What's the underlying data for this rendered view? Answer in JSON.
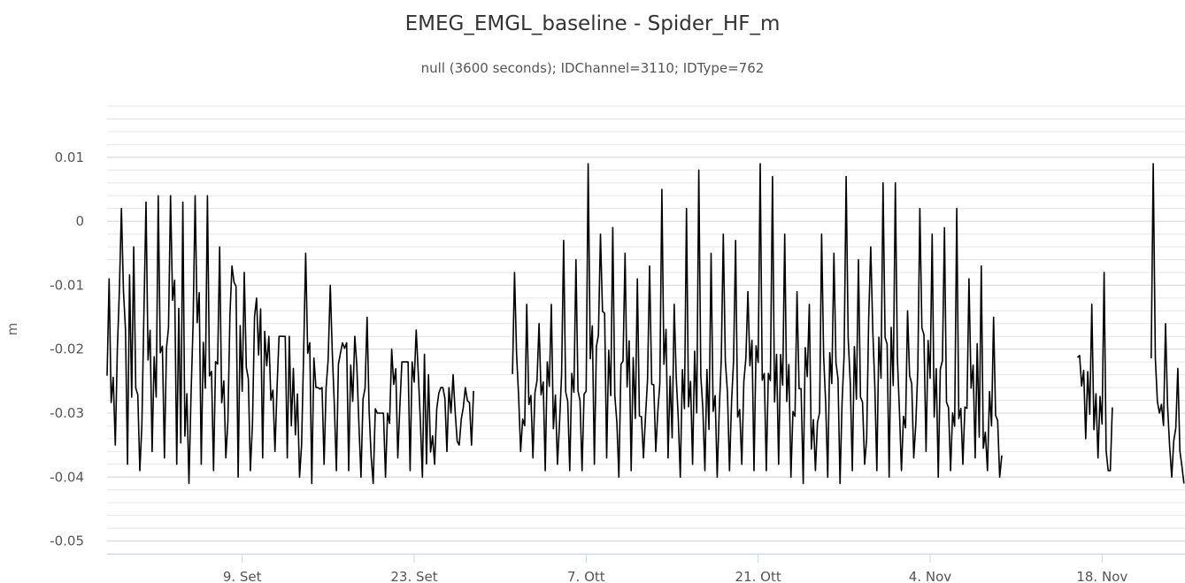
{
  "chart_data": {
    "type": "line",
    "title": "EMEG_EMGL_baseline - Spider_HF_m",
    "subtitle": "null (3600 seconds); IDChannel=3110; IDType=762",
    "xlabel": "",
    "ylabel": "m",
    "ylim": [
      -0.052,
      0.018
    ],
    "y_ticks": [
      "0.01",
      "0",
      "-0.01",
      "-0.02",
      "-0.03",
      "-0.04",
      "-0.05"
    ],
    "y_tick_values": [
      0.01,
      0,
      -0.01,
      -0.02,
      -0.03,
      -0.04,
      -0.05
    ],
    "x_ticks": [
      "9. Set",
      "23. Set",
      "7. Ott",
      "21. Ott",
      "4. Nov",
      "18. Nov"
    ],
    "x_tick_dates": [
      "2013-09-09",
      "2013-09-23",
      "2013-10-07",
      "2013-10-21",
      "2013-11-04",
      "2013-11-18"
    ],
    "xlim": [
      "2013-08-29",
      "2013-11-24T18:00"
    ],
    "minor_grid": true,
    "line_color": "#000000",
    "series": [
      {
        "name": "",
        "segments": [
          {
            "x": [
              "2013-08-29",
              "2013-08-30",
              "2013-08-31",
              "2013-09-01",
              "2013-09-02",
              "2013-09-03",
              "2013-09-04",
              "2013-09-05",
              "2013-09-06",
              "2013-09-07",
              "2013-09-08",
              "2013-09-09",
              "2013-09-10",
              "2013-09-11",
              "2013-09-12",
              "2013-09-13",
              "2013-09-14",
              "2013-09-15",
              "2013-09-16",
              "2013-09-17",
              "2013-09-18",
              "2013-09-19",
              "2013-09-20",
              "2013-09-21",
              "2013-09-22",
              "2013-09-23",
              "2013-09-24",
              "2013-09-25",
              "2013-09-26",
              "2013-09-27"
            ],
            "y": [
              -0.026,
              -0.013,
              -0.03,
              -0.018,
              -0.024,
              -0.012,
              -0.032,
              -0.015,
              -0.022,
              -0.028,
              -0.014,
              -0.027,
              -0.016,
              -0.025,
              -0.011,
              -0.029,
              -0.018,
              -0.026,
              -0.023,
              -0.02,
              -0.028,
              -0.031,
              -0.024,
              -0.029,
              -0.018,
              -0.026,
              -0.033,
              -0.025,
              -0.029,
              -0.031
            ],
            "y_max": [
              -0.009,
              0.002,
              -0.004,
              0.003,
              0.004,
              0.004,
              0.003,
              0.004,
              0.004,
              -0.004,
              -0.007,
              -0.008,
              -0.012,
              -0.018,
              -0.018,
              -0.023,
              -0.005,
              -0.026,
              -0.01,
              -0.019,
              -0.018,
              -0.015,
              -0.03,
              -0.02,
              -0.022,
              -0.017,
              -0.024,
              -0.026,
              -0.024,
              -0.026
            ],
            "y_min": [
              -0.035,
              -0.038,
              -0.039,
              -0.036,
              -0.037,
              -0.038,
              -0.041,
              -0.038,
              -0.039,
              -0.037,
              -0.04,
              -0.039,
              -0.037,
              -0.036,
              -0.037,
              -0.04,
              -0.041,
              -0.038,
              -0.039,
              -0.039,
              -0.04,
              -0.041,
              -0.04,
              -0.037,
              -0.039,
              -0.04,
              -0.038,
              -0.036,
              -0.035,
              -0.035
            ]
          },
          {
            "x": [
              "2013-10-01",
              "2013-10-02",
              "2013-10-03",
              "2013-10-04",
              "2013-10-05",
              "2013-10-06",
              "2013-10-07",
              "2013-10-08",
              "2013-10-09",
              "2013-10-10",
              "2013-10-11",
              "2013-10-12",
              "2013-10-13",
              "2013-10-14",
              "2013-10-15",
              "2013-10-16",
              "2013-10-17",
              "2013-10-18",
              "2013-10-19",
              "2013-10-20",
              "2013-10-21",
              "2013-10-22",
              "2013-10-23",
              "2013-10-24",
              "2013-10-25",
              "2013-10-26",
              "2013-10-27",
              "2013-10-28",
              "2013-10-29",
              "2013-10-30",
              "2013-10-31",
              "2013-11-01",
              "2013-11-02",
              "2013-11-03",
              "2013-11-04",
              "2013-11-05",
              "2013-11-06",
              "2013-11-07",
              "2013-11-08",
              "2013-11-09"
            ],
            "y": [
              -0.025,
              -0.029,
              -0.027,
              -0.028,
              -0.026,
              -0.025,
              -0.022,
              -0.018,
              -0.027,
              -0.02,
              -0.026,
              -0.028,
              -0.022,
              -0.029,
              -0.026,
              -0.027,
              -0.03,
              -0.024,
              -0.025,
              -0.021,
              -0.023,
              -0.026,
              -0.027,
              -0.025,
              -0.03,
              -0.026,
              -0.028,
              -0.023,
              -0.029,
              -0.02,
              -0.022,
              -0.026,
              -0.029,
              -0.021,
              -0.027,
              -0.025,
              -0.029,
              -0.024,
              -0.03,
              -0.032
            ],
            "y_max": [
              -0.008,
              -0.013,
              -0.016,
              -0.013,
              -0.003,
              -0.006,
              0.009,
              -0.002,
              -0.001,
              -0.005,
              -0.009,
              -0.007,
              0.005,
              -0.013,
              0.002,
              0.008,
              -0.005,
              -0.002,
              -0.003,
              -0.011,
              0.009,
              0.007,
              -0.002,
              -0.011,
              -0.013,
              -0.002,
              -0.005,
              0.007,
              -0.006,
              -0.004,
              0.006,
              0.006,
              -0.014,
              0.002,
              -0.002,
              -0.001,
              0.002,
              -0.009,
              -0.007,
              -0.015
            ],
            "y_min": [
              -0.036,
              -0.037,
              -0.039,
              -0.038,
              -0.039,
              -0.039,
              -0.038,
              -0.037,
              -0.04,
              -0.039,
              -0.037,
              -0.036,
              -0.037,
              -0.04,
              -0.038,
              -0.039,
              -0.04,
              -0.039,
              -0.038,
              -0.039,
              -0.039,
              -0.038,
              -0.04,
              -0.041,
              -0.039,
              -0.04,
              -0.041,
              -0.039,
              -0.038,
              -0.039,
              -0.04,
              -0.039,
              -0.037,
              -0.036,
              -0.04,
              -0.039,
              -0.038,
              -0.037,
              -0.039,
              -0.04
            ]
          },
          {
            "x": [
              "2013-11-16",
              "2013-11-17",
              "2013-11-18"
            ],
            "y": [
              -0.025,
              -0.028,
              -0.035
            ],
            "y_max": [
              -0.021,
              -0.013,
              -0.008
            ],
            "y_min": [
              -0.034,
              -0.037,
              -0.039
            ]
          },
          {
            "x": [
              "2013-11-22",
              "2013-11-23",
              "2013-11-24"
            ],
            "y": [
              -0.025,
              -0.034,
              -0.038
            ],
            "y_max": [
              0.009,
              -0.016,
              -0.023
            ],
            "y_min": [
              -0.03,
              -0.04,
              -0.041
            ]
          }
        ]
      }
    ]
  }
}
